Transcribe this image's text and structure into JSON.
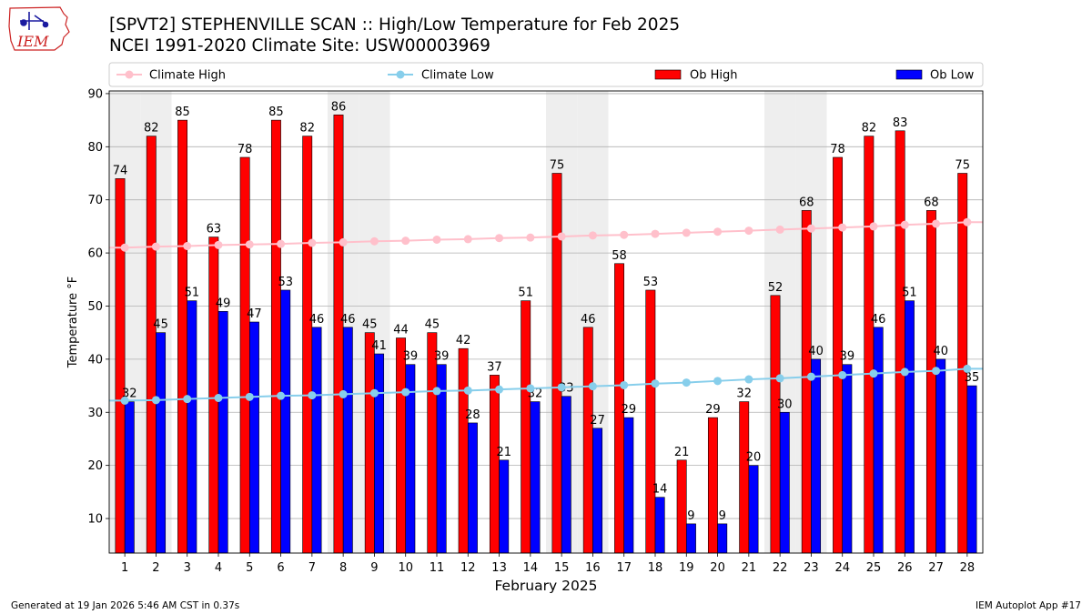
{
  "header": {
    "title_line1": "[SPVT2] STEPHENVILLE SCAN :: High/Low Temperature for Feb 2025",
    "title_line2": "NCEI 1991-2020 Climate Site: USW00003969",
    "logo_text": "IEM"
  },
  "footer": {
    "generated": "Generated at 19 Jan 2026 5:46 AM CST in 0.37s",
    "app": "IEM Autoplot App #17"
  },
  "colors": {
    "ob_high": "#ff0000",
    "ob_low": "#0000ff",
    "climate_high": "#ffc0cb",
    "climate_low": "#87ceeb",
    "weekend_shade": "#eeeeee",
    "logo_red": "#cc2222",
    "logo_blue": "#1a1aa0"
  },
  "chart_data": {
    "type": "bar",
    "xlabel": "February 2025",
    "ylabel": "Temperature °F",
    "ylim": [
      3.5,
      90.5
    ],
    "yticks": [
      10,
      20,
      30,
      40,
      50,
      60,
      70,
      80,
      90
    ],
    "grid": "horizontal",
    "legend_position": "top",
    "categories": [
      "1",
      "2",
      "3",
      "4",
      "5",
      "6",
      "7",
      "8",
      "9",
      "10",
      "11",
      "12",
      "13",
      "14",
      "15",
      "16",
      "17",
      "18",
      "19",
      "20",
      "21",
      "22",
      "23",
      "24",
      "25",
      "26",
      "27",
      "28"
    ],
    "shaded_days": [
      1,
      2,
      8,
      9,
      15,
      16,
      22,
      23
    ],
    "series": [
      {
        "name": "Climate High",
        "kind": "line",
        "values": [
          61.0,
          61.2,
          61.3,
          61.5,
          61.6,
          61.7,
          61.9,
          62.0,
          62.2,
          62.3,
          62.5,
          62.6,
          62.8,
          62.9,
          63.1,
          63.3,
          63.4,
          63.6,
          63.8,
          64.0,
          64.2,
          64.4,
          64.6,
          64.8,
          65.0,
          65.3,
          65.5,
          65.8
        ]
      },
      {
        "name": "Climate Low",
        "kind": "line",
        "values": [
          32.2,
          32.3,
          32.5,
          32.7,
          32.9,
          33.1,
          33.2,
          33.4,
          33.6,
          33.8,
          34.0,
          34.1,
          34.3,
          34.5,
          34.7,
          34.9,
          35.1,
          35.4,
          35.6,
          35.9,
          36.2,
          36.4,
          36.7,
          37.0,
          37.3,
          37.6,
          37.8,
          38.2
        ]
      },
      {
        "name": "Ob High",
        "kind": "bar",
        "values": [
          74,
          82,
          85,
          63,
          78,
          85,
          82,
          86,
          45,
          44,
          45,
          42,
          37,
          51,
          75,
          46,
          58,
          53,
          21,
          29,
          32,
          52,
          68,
          78,
          82,
          83,
          68,
          75
        ]
      },
      {
        "name": "Ob Low",
        "kind": "bar",
        "values": [
          32,
          45,
          51,
          49,
          47,
          53,
          46,
          46,
          41,
          39,
          39,
          28,
          21,
          32,
          33,
          27,
          29,
          14,
          9,
          9,
          20,
          30,
          40,
          39,
          46,
          51,
          40,
          35
        ]
      }
    ]
  }
}
